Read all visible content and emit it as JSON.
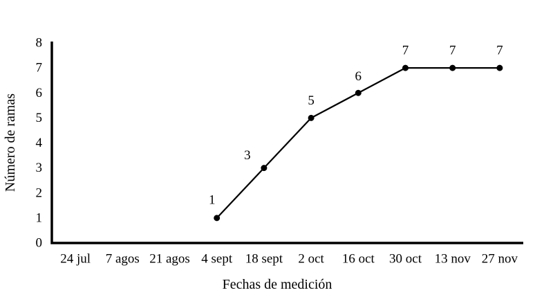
{
  "chart_data": {
    "type": "line",
    "title": "",
    "xlabel": "Fechas de medición",
    "ylabel": "Número de ramas",
    "categories": [
      "24 jul",
      "7 agos",
      "21 agos",
      "4 sept",
      "18 sept",
      "2 oct",
      "16 oct",
      "30 oct",
      "13 nov",
      "27 nov"
    ],
    "yticks": [
      0,
      1,
      2,
      3,
      4,
      5,
      6,
      7,
      8
    ],
    "ylim": [
      0,
      8
    ],
    "grid": false,
    "legend": "none",
    "series": [
      {
        "name": "Número de ramas",
        "marker": "filled-circle",
        "color": "#000000",
        "x_categories": [
          "4 sept",
          "18 sept",
          "2 oct",
          "16 oct",
          "30 oct",
          "13 nov",
          "27 nov"
        ],
        "x_indices": [
          3,
          4,
          5,
          6,
          7,
          8,
          9
        ],
        "values": [
          1,
          3,
          5,
          6,
          7,
          7,
          7
        ],
        "data_labels": [
          "1",
          "3",
          "5",
          "6",
          "7",
          "7",
          "7"
        ],
        "label_offsets": [
          [
            -7,
            -26
          ],
          [
            -24,
            -18
          ],
          [
            0,
            -25
          ],
          [
            0,
            -24
          ],
          [
            0,
            -25
          ],
          [
            0,
            -25
          ],
          [
            0,
            -25
          ]
        ]
      }
    ],
    "colors": {
      "axis": "#000000",
      "line": "#000000",
      "text": "#000000",
      "background": "#ffffff"
    }
  }
}
